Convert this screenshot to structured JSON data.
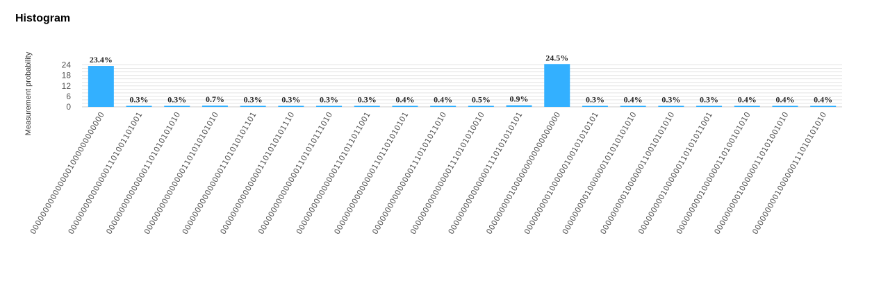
{
  "page": {
    "title": "Histogram"
  },
  "chart_data": {
    "type": "bar",
    "title": "",
    "xlabel": "",
    "ylabel": "Measurement probability",
    "ylim": [
      0,
      25
    ],
    "yticks": [
      0,
      6,
      12,
      18,
      24
    ],
    "grid": true,
    "bar_color": "#33b0ff",
    "categories": [
      "0000000000000001000000000000",
      "0000000000000001101001101001",
      "0000000000000001101010101010",
      "0000000000000001101010101010",
      "0000000000000001101010101101",
      "0000000000000001101010101110",
      "0000000000000001101010111010",
      "0000000000000001101011011001",
      "0000000000000001101101010101",
      "0000000000000001110101011010",
      "0000000000000001110101010010",
      "0000000000000001110101010101",
      "0000000001000000000000000000",
      "0000000001000000100101010101",
      "0000000001000000101010101010",
      "0000000001000000110010101010",
      "0000000001000000110101011001",
      "0000000001000000110100101010",
      "0000000001000000110101001010",
      "0000000001000000111010101010"
    ],
    "values": [
      23.4,
      0.3,
      0.3,
      0.7,
      0.3,
      0.3,
      0.3,
      0.3,
      0.4,
      0.4,
      0.5,
      0.9,
      24.5,
      0.3,
      0.4,
      0.3,
      0.3,
      0.4,
      0.4,
      0.4
    ],
    "data_labels": [
      "23.4%",
      "0.3%",
      "0.3%",
      "0.7%",
      "0.3%",
      "0.3%",
      "0.3%",
      "0.3%",
      "0.4%",
      "0.4%",
      "0.5%",
      "0.9%",
      "24.5%",
      "0.3%",
      "0.4%",
      "0.3%",
      "0.3%",
      "0.4%",
      "0.4%",
      "0.4%"
    ]
  }
}
